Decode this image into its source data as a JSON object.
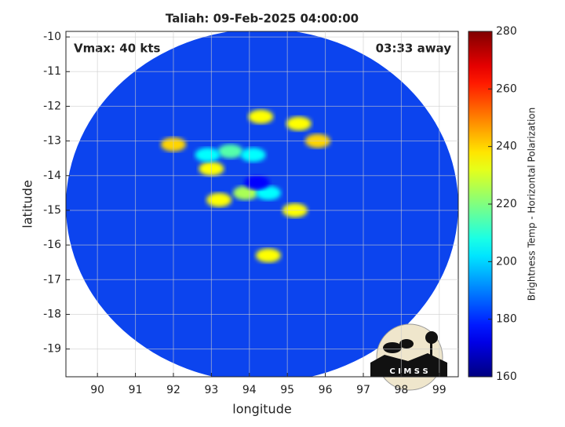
{
  "chart_data": {
    "type": "heatmap",
    "title": "Taliah: 09-Feb-2025 04:00:00",
    "annotations": [
      "Vmax: 40 kts",
      "03:33 away"
    ],
    "x_label": "longitude",
    "y_label": "latitude",
    "colorbar_label": "Brightness Temp - Horizontal Polarization",
    "logo": "C I M S S",
    "xlim": [
      89.17,
      99.5
    ],
    "xticks": [
      90,
      91,
      92,
      93,
      94,
      95,
      96,
      97,
      98,
      99
    ],
    "ylim": [
      -19.8,
      -9.84
    ],
    "yticks": [
      -19,
      -18,
      -17,
      -16,
      -15,
      -14,
      -13,
      -12,
      -11,
      -10
    ],
    "clim": [
      160,
      280
    ],
    "cticks": [
      160,
      180,
      200,
      220,
      240,
      260,
      280
    ],
    "colormap": "jet",
    "grid": true,
    "disk_color": "#0c44ee",
    "features": [
      {
        "lon": 92.0,
        "lat": -13.1,
        "value": 240
      },
      {
        "lon": 94.3,
        "lat": -12.3,
        "value": 235
      },
      {
        "lon": 95.3,
        "lat": -12.5,
        "value": 235
      },
      {
        "lon": 95.8,
        "lat": -13.0,
        "value": 240
      },
      {
        "lon": 93.0,
        "lat": -13.8,
        "value": 235
      },
      {
        "lon": 93.2,
        "lat": -14.7,
        "value": 235
      },
      {
        "lon": 95.2,
        "lat": -15.0,
        "value": 235
      },
      {
        "lon": 94.5,
        "lat": -16.3,
        "value": 235
      },
      {
        "lon": 93.9,
        "lat": -14.5,
        "value": 225
      },
      {
        "lon": 93.5,
        "lat": -13.3,
        "value": 215
      },
      {
        "lon": 92.9,
        "lat": -13.4,
        "value": 205
      },
      {
        "lon": 94.1,
        "lat": -13.4,
        "value": 205
      },
      {
        "lon": 94.5,
        "lat": -14.5,
        "value": 205
      },
      {
        "lon": 94.2,
        "lat": -14.2,
        "value": 175
      }
    ]
  }
}
